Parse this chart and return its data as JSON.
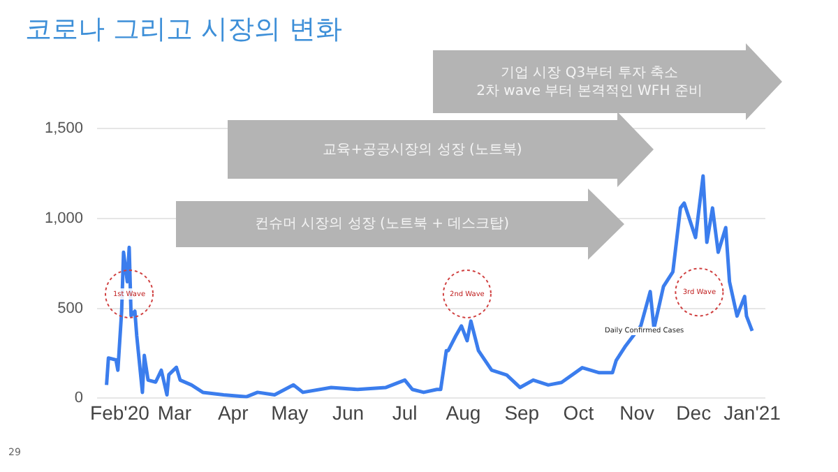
{
  "chart_data": {
    "type": "line",
    "title": "코로나 그리고 시장의 변화",
    "annotations": [
      "기업 시장 Q3부터 투자 축소\n2차 wave 부터 본격적인 WFH 준비",
      "교육+공공시장의 성장 (노트북)",
      "컨슈머 시장의 성장 (노트북 + 데스크탑)",
      "29",
      {
        "text": "1st Wave",
        "x": "2020-02-06",
        "y": 580
      },
      {
        "text": "2nd Wave",
        "x": "2020-08-03",
        "y": 580
      },
      {
        "text": "3rd Wave",
        "x": "2020-12-04",
        "y": 590
      },
      "Daily Confirmed Cases"
    ],
    "series": [
      {
        "color": "#3b7ded",
        "x": [
          "2020-01-25",
          "2020-01-26",
          "2020-01-30",
          "2020-01-31",
          "2020-02-02",
          "2020-02-03",
          "2020-02-05",
          "2020-02-06",
          "2020-02-07",
          "2020-02-09",
          "2020-02-10",
          "2020-02-13",
          "2020-02-14",
          "2020-02-16",
          "2020-02-20",
          "2020-02-23",
          "2020-02-26",
          "2020-02-27",
          "2020-03-02",
          "2020-03-04",
          "2020-03-10",
          "2020-03-16",
          "2020-03-27",
          "2020-04-08",
          "2020-04-14",
          "2020-04-23",
          "2020-05-03",
          "2020-05-08",
          "2020-05-23",
          "2020-06-06",
          "2020-06-21",
          "2020-07-01",
          "2020-07-05",
          "2020-07-11",
          "2020-07-18",
          "2020-07-20",
          "2020-07-23",
          "2020-07-24",
          "2020-07-28",
          "2020-07-31",
          "2020-08-03",
          "2020-08-05",
          "2020-08-09",
          "2020-08-16",
          "2020-08-24",
          "2020-08-31",
          "2020-09-07",
          "2020-09-15",
          "2020-09-22",
          "2020-10-03",
          "2020-10-12",
          "2020-10-19",
          "2020-10-21",
          "2020-10-26",
          "2020-11-03",
          "2020-11-08",
          "2020-11-10",
          "2020-11-15",
          "2020-11-20",
          "2020-11-24",
          "2020-11-26",
          "2020-12-02",
          "2020-12-06",
          "2020-12-08",
          "2020-12-11",
          "2020-12-14",
          "2020-12-18",
          "2020-12-20",
          "2020-12-24",
          "2020-12-28",
          "2020-12-29",
          "2021-01-01"
        ],
        "values": [
          74,
          224,
          213,
          156,
          484,
          812,
          648,
          839,
          459,
          484,
          347,
          33,
          238,
          101,
          90,
          156,
          19,
          131,
          172,
          101,
          74,
          33,
          19,
          8,
          33,
          19,
          74,
          33,
          60,
          49,
          60,
          101,
          49,
          33,
          49,
          49,
          265,
          265,
          347,
          402,
          320,
          429,
          265,
          156,
          129,
          60,
          101,
          74,
          88,
          170,
          142,
          142,
          211,
          292,
          402,
          593,
          388,
          621,
          703,
          1058,
          1085,
          894,
          1236,
          867,
          1058,
          812,
          949,
          648,
          457,
          566,
          457,
          375
        ]
      }
    ],
    "xlim": [
      "2020-01-20",
      "2021-01-08"
    ],
    "xticks": [
      {
        "value": "2020-02-01",
        "label": "Feb'20"
      },
      {
        "value": "2020-03-01",
        "label": "Mar"
      },
      {
        "value": "2020-04-01",
        "label": "Apr"
      },
      {
        "value": "2020-05-01",
        "label": "May"
      },
      {
        "value": "2020-06-01",
        "label": "Jun"
      },
      {
        "value": "2020-07-01",
        "label": "Jul"
      },
      {
        "value": "2020-08-01",
        "label": "Aug"
      },
      {
        "value": "2020-09-01",
        "label": "Sep"
      },
      {
        "value": "2020-10-01",
        "label": "Oct"
      },
      {
        "value": "2020-11-01",
        "label": "Nov"
      },
      {
        "value": "2020-12-01",
        "label": "Dec"
      },
      {
        "value": "2021-01-01",
        "label": "Jan'21"
      }
    ],
    "ylim": [
      0,
      1500
    ],
    "yticks": [
      0,
      500,
      {
        "value": 1000,
        "label": "1,000"
      },
      {
        "value": 1500,
        "label": "1,500"
      }
    ],
    "grid": "y",
    "legend": false,
    "marker": "none",
    "line_style": "solid"
  }
}
